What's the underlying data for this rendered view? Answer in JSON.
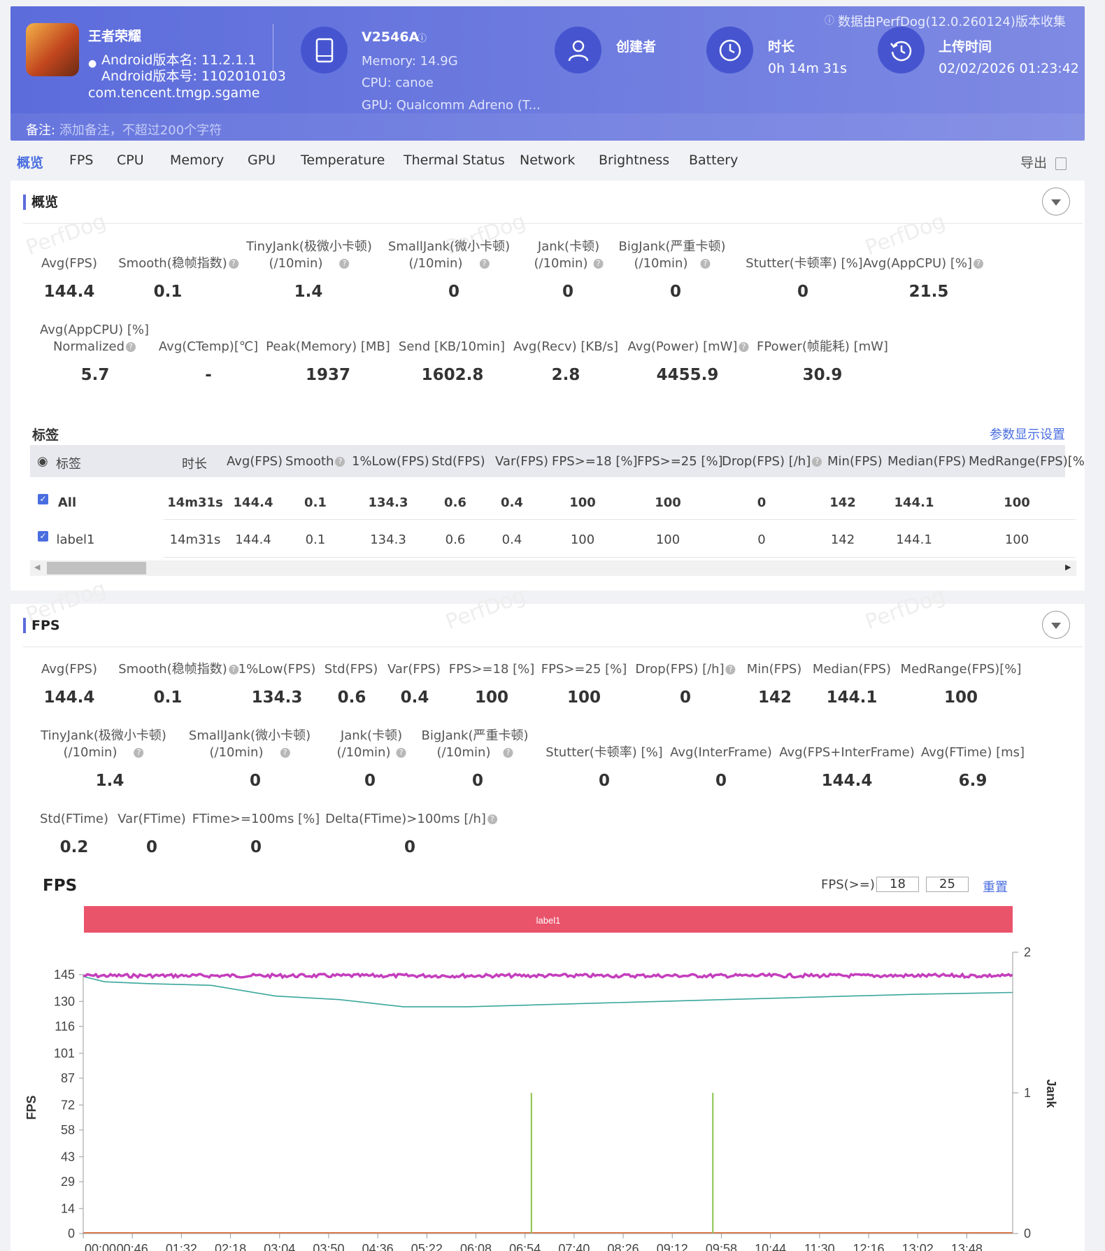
{
  "header": {
    "app_name": "王者荣耀",
    "android_version_name": "Android版本名: 11.2.1.1",
    "android_version_code": "Android版本号: 1102010103",
    "package": "com.tencent.tmgp.sgame",
    "device_name": "V2546A",
    "memory": "Memory: 14.9G",
    "cpu": "CPU: canoe",
    "gpu": "GPU: Qualcomm Adreno (T...",
    "creator_label": "创建者",
    "duration_label": "时长",
    "duration_value": "0h 14m 31s",
    "upload_label": "上传时间",
    "upload_value": "02/02/2026 01:23:42",
    "collected_by": "数据由PerfDog(12.0.260124)版本收集",
    "note_label": "备注:",
    "note_placeholder": "添加备注，不超过200个字符"
  },
  "tabs": [
    "概览",
    "FPS",
    "CPU",
    "Memory",
    "GPU",
    "Temperature",
    "Thermal Status",
    "Network",
    "Brightness",
    "Battery"
  ],
  "export_label": "导出",
  "watermark": "PerfDog",
  "overview": {
    "title": "概览",
    "row1": [
      {
        "label": "Avg(FPS)",
        "value": "144.4"
      },
      {
        "label": "Smooth(稳帧指数)",
        "value": "0.1"
      },
      {
        "label": "TinyJank(极微小卡顿)",
        "label2": "(/10min)",
        "value": "1.4"
      },
      {
        "label": "SmallJank(微小卡顿)",
        "label2": "(/10min)",
        "value": "0"
      },
      {
        "label": "Jank(卡顿)",
        "label2": "(/10min)",
        "value": "0"
      },
      {
        "label": "BigJank(严重卡顿)",
        "label2": "(/10min)",
        "value": "0"
      },
      {
        "label": "Stutter(卡顿率) [%]",
        "value": "0"
      },
      {
        "label": "Avg(AppCPU) [%]",
        "value": "21.5"
      }
    ],
    "row2": [
      {
        "label": "Avg(AppCPU) [%]",
        "label2": "Normalized",
        "value": "5.7"
      },
      {
        "label": "Avg(CTemp)[℃]",
        "value": "-"
      },
      {
        "label": "Peak(Memory) [MB]",
        "value": "1937"
      },
      {
        "label": "Send [KB/10min]",
        "value": "1602.8"
      },
      {
        "label": "Avg(Recv) [KB/s]",
        "value": "2.8"
      },
      {
        "label": "Avg(Power) [mW]",
        "value": "4455.9"
      },
      {
        "label": "FPower(帧能耗) [mW]",
        "value": "30.9"
      }
    ]
  },
  "labels_table": {
    "title": "标签",
    "settings_link": "参数显示设置",
    "columns": [
      "标签",
      "时长",
      "Avg(FPS)",
      "Smooth",
      "1%Low(FPS)",
      "Std(FPS)",
      "Var(FPS)",
      "FPS>=18 [%]",
      "FPS>=25 [%]",
      "Drop(FPS) [/h]",
      "Min(FPS)",
      "Median(FPS)",
      "MedRange(FPS)[%"
    ],
    "rows": [
      [
        "All",
        "14m31s",
        "144.4",
        "0.1",
        "134.3",
        "0.6",
        "0.4",
        "100",
        "100",
        "0",
        "142",
        "144.1",
        "100"
      ],
      [
        "label1",
        "14m31s",
        "144.4",
        "0.1",
        "134.3",
        "0.6",
        "0.4",
        "100",
        "100",
        "0",
        "142",
        "144.1",
        "100"
      ]
    ]
  },
  "fps_section": {
    "title": "FPS",
    "row1": [
      {
        "label": "Avg(FPS)",
        "value": "144.4"
      },
      {
        "label": "Smooth(稳帧指数)",
        "value": "0.1"
      },
      {
        "label": "1%Low(FPS)",
        "value": "134.3"
      },
      {
        "label": "Std(FPS)",
        "value": "0.6"
      },
      {
        "label": "Var(FPS)",
        "value": "0.4"
      },
      {
        "label": "FPS>=18 [%]",
        "value": "100"
      },
      {
        "label": "FPS>=25 [%]",
        "value": "100"
      },
      {
        "label": "Drop(FPS) [/h]",
        "value": "0"
      },
      {
        "label": "Min(FPS)",
        "value": "142"
      },
      {
        "label": "Median(FPS)",
        "value": "144.1"
      },
      {
        "label": "MedRange(FPS)[%]",
        "value": "100"
      }
    ],
    "row2": [
      {
        "label": "TinyJank(极微小卡顿)",
        "label2": "(/10min)",
        "value": "1.4"
      },
      {
        "label": "SmallJank(微小卡顿)",
        "label2": "(/10min)",
        "value": "0"
      },
      {
        "label": "Jank(卡顿)",
        "label2": "(/10min)",
        "value": "0"
      },
      {
        "label": "BigJank(严重卡顿)",
        "label2": "(/10min)",
        "value": "0"
      },
      {
        "label": "Stutter(卡顿率) [%]",
        "value": "0"
      },
      {
        "label": "Avg(InterFrame)",
        "value": "0"
      },
      {
        "label": "Avg(FPS+InterFrame)",
        "value": "144.4"
      },
      {
        "label": "Avg(FTime) [ms]",
        "value": "6.9"
      }
    ],
    "row3": [
      {
        "label": "Std(FTime)",
        "value": "0.2"
      },
      {
        "label": "Var(FTime)",
        "value": "0"
      },
      {
        "label": "FTime>=100ms [%]",
        "value": "0"
      },
      {
        "label": "Delta(FTime)>100ms [/h]",
        "value": "0"
      }
    ],
    "chart_title": "FPS",
    "threshold_label": "FPS(>=)",
    "threshold_1": "18",
    "threshold_2": "25",
    "reset_label": "重置"
  },
  "chart_data": {
    "type": "line",
    "title": "FPS",
    "label_band": "label1",
    "ylabel": "FPS",
    "y2label": "Jank",
    "ylim": [
      0,
      145
    ],
    "y2lim": [
      0,
      2
    ],
    "y_ticks": [
      "145",
      "130",
      "116",
      "101",
      "87",
      "72",
      "58",
      "43",
      "29",
      "14",
      "0"
    ],
    "y2_ticks": [
      "2",
      "1",
      "0"
    ],
    "x_ticks": [
      "00:00",
      "00:46",
      "01:32",
      "02:18",
      "03:04",
      "03:50",
      "04:36",
      "05:22",
      "06:08",
      "06:54",
      "07:40",
      "08:26",
      "09:12",
      "09:58",
      "10:44",
      "11:30",
      "12:16",
      "13:02",
      "13:48"
    ],
    "series": [
      {
        "name": "FPS",
        "color": "#c43ebd",
        "x_sec": [
          0,
          871
        ],
        "values": [
          144.4,
          144.4
        ]
      },
      {
        "name": "1%Low(FPS)",
        "color": "#3aa79b",
        "x_sec": [
          0,
          20,
          60,
          120,
          180,
          240,
          300,
          360,
          420,
          480,
          540,
          600,
          660,
          720,
          780,
          871
        ],
        "values": [
          144,
          141,
          140,
          139,
          133,
          131,
          127,
          127,
          128,
          129,
          130,
          131,
          132,
          133,
          134,
          135
        ]
      },
      {
        "name": "Jank",
        "color": "#8bc34a",
        "x_sec": [
          420,
          590
        ],
        "values": [
          1,
          1
        ]
      }
    ],
    "colors": {
      "accent": "#5c6cdb",
      "band": "#e9546b"
    }
  }
}
